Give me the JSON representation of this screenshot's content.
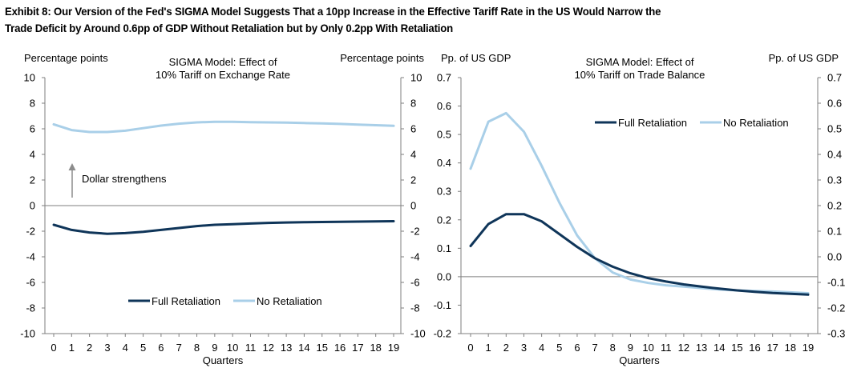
{
  "title_line1": "Exhibit 8: Our Version of the Fed's SIGMA Model Suggests That a 10pp Increase in the Effective Tariff Rate in the US Would Narrow the",
  "title_line2": "Trade Deficit by Around 0.6pp of GDP Without Retaliation but by Only 0.2pp With Retaliation",
  "colors": {
    "full": "#0f3559",
    "no": "#a9cfe8",
    "axis": "#7f7f7f",
    "arrow": "#8c8c8c"
  },
  "chart_data": [
    {
      "type": "line",
      "title": [
        "SIGMA Model: Effect of",
        "10% Tariff on Exchange Rate"
      ],
      "ylabel_left": "Percentage points",
      "ylabel_right": "Percentage points",
      "xlabel": "Quarters",
      "x": [
        0,
        1,
        2,
        3,
        4,
        5,
        6,
        7,
        8,
        9,
        10,
        11,
        12,
        13,
        14,
        15,
        16,
        17,
        18,
        19
      ],
      "ylim_left": [
        -10,
        10
      ],
      "yticks_left": [
        -10,
        -8,
        -6,
        -4,
        -2,
        0,
        2,
        4,
        6,
        8,
        10
      ],
      "ylim_right": [
        -10,
        10
      ],
      "yticks_right": [
        -10,
        -8,
        -6,
        -4,
        -2,
        0,
        2,
        4,
        6,
        8,
        10
      ],
      "legend": "bottom-center",
      "annotation": "Dollar strengthens",
      "series": [
        {
          "name": "Full Retaliation",
          "values": [
            -1.5,
            -1.9,
            -2.1,
            -2.2,
            -2.15,
            -2.05,
            -1.9,
            -1.75,
            -1.6,
            -1.5,
            -1.45,
            -1.4,
            -1.35,
            -1.32,
            -1.3,
            -1.28,
            -1.26,
            -1.25,
            -1.23,
            -1.22
          ]
        },
        {
          "name": "No Retaliation",
          "values": [
            6.35,
            5.9,
            5.75,
            5.75,
            5.85,
            6.05,
            6.25,
            6.4,
            6.5,
            6.55,
            6.55,
            6.52,
            6.5,
            6.48,
            6.45,
            6.42,
            6.38,
            6.33,
            6.28,
            6.23
          ]
        }
      ]
    },
    {
      "type": "line",
      "title": [
        "SIGMA Model: Effect of",
        "10% Tariff on Trade Balance"
      ],
      "ylabel_left": "Pp. of US GDP",
      "ylabel_right": "Pp. of US GDP",
      "xlabel": "Quarters",
      "x": [
        0,
        1,
        2,
        3,
        4,
        5,
        6,
        7,
        8,
        9,
        10,
        11,
        12,
        13,
        14,
        15,
        16,
        17,
        18,
        19
      ],
      "ylim_left": [
        -0.2,
        0.7
      ],
      "yticks_left": [
        -0.2,
        -0.1,
        0.0,
        0.1,
        0.2,
        0.3,
        0.4,
        0.5,
        0.6,
        0.7
      ],
      "ylim_right": [
        -0.3,
        0.7
      ],
      "yticks_right": [
        -0.3,
        -0.2,
        -0.1,
        0.0,
        0.1,
        0.2,
        0.3,
        0.4,
        0.5,
        0.6,
        0.7
      ],
      "legend": "top-right",
      "series": [
        {
          "name": "Full Retaliation",
          "values": [
            0.108,
            0.185,
            0.22,
            0.22,
            0.195,
            0.15,
            0.105,
            0.065,
            0.035,
            0.012,
            -0.005,
            -0.017,
            -0.027,
            -0.035,
            -0.042,
            -0.048,
            -0.053,
            -0.057,
            -0.06,
            -0.063
          ]
        },
        {
          "name": "No Retaliation",
          "values": [
            0.38,
            0.545,
            0.575,
            0.51,
            0.39,
            0.26,
            0.145,
            0.065,
            0.015,
            -0.01,
            -0.022,
            -0.03,
            -0.035,
            -0.04,
            -0.045,
            -0.048,
            -0.05,
            -0.052,
            -0.055,
            -0.058
          ]
        }
      ]
    }
  ]
}
